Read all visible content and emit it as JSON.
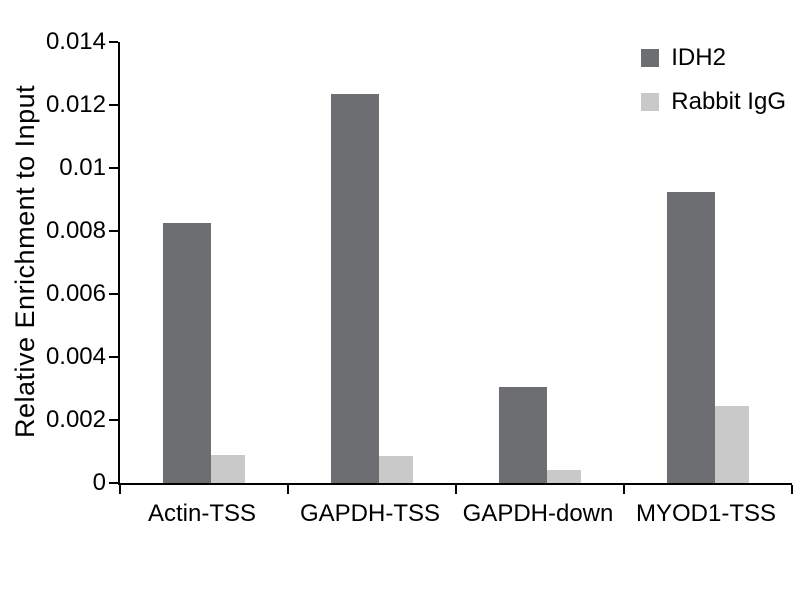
{
  "chart_data": {
    "type": "bar",
    "title": "",
    "xlabel": "",
    "ylabel": "Relative Enrichment to Input",
    "categories": [
      "Actin-TSS",
      "GAPDH-TSS",
      "GAPDH-down",
      "MYOD1-TSS"
    ],
    "series": [
      {
        "name": "IDH2",
        "color": "#6d6e71",
        "values": [
          0.00825,
          0.01235,
          0.00305,
          0.00925
        ]
      },
      {
        "name": "Rabbit IgG",
        "color": "#c9c9c9",
        "values": [
          0.0009,
          0.00085,
          0.0004,
          0.00245
        ]
      }
    ],
    "ylim": [
      0,
      0.014
    ],
    "y_ticks": [
      0,
      0.002,
      0.004,
      0.006,
      0.008,
      0.01,
      0.012,
      0.014
    ],
    "y_tick_labels": [
      "0",
      "0.002",
      "0.004",
      "0.006",
      "0.008",
      "0.01",
      "0.012",
      "0.014"
    ],
    "legend_position": "top-right",
    "grid": false,
    "background_color": "#ffffff",
    "axis_color": "#000000"
  }
}
